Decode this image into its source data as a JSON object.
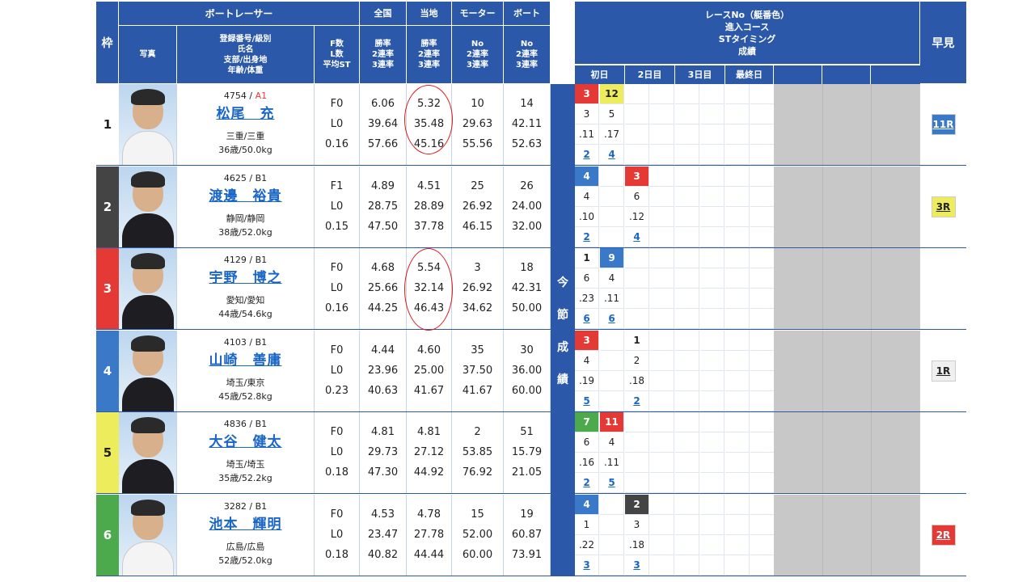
{
  "header": {
    "waku": "枠",
    "boat_racer": "ボートレーサー",
    "photo": "写真",
    "profile": [
      "登録番号/級別",
      "氏名",
      "支部/出身地",
      "年齢/体重"
    ],
    "fst": [
      "F数",
      "L数",
      "平均ST"
    ],
    "national": "全国",
    "local": "当地",
    "motor": "モーター",
    "boat": "ボート",
    "rates_national": [
      "勝率",
      "2連率",
      "3連率"
    ],
    "rates_local": [
      "勝率",
      "2連率",
      "3連率"
    ],
    "rates_motor": [
      "No",
      "2連率",
      "3連率"
    ],
    "rates_boat": [
      "No",
      "2連率",
      "3連率"
    ],
    "results_title": [
      "レースNo（艇番色）",
      "進入コース",
      "STタイミング",
      "成績"
    ],
    "days": [
      "初日",
      "2日目",
      "3日目",
      "最終日"
    ],
    "hayami": "早見",
    "band": [
      "今",
      "節",
      "成",
      "績"
    ]
  },
  "racers": [
    {
      "waku": "1",
      "reg": "4754 / ",
      "cls": "A1",
      "name": "松尾　充",
      "branch": "三重/三重",
      "age": "36歳/50.0kg",
      "fst": [
        "F0",
        "L0",
        "0.16"
      ],
      "national": [
        "6.06",
        "39.64",
        "57.66"
      ],
      "local": [
        "5.32",
        "35.48",
        "45.16"
      ],
      "motor": [
        "10",
        "29.63",
        "55.56"
      ],
      "boat": [
        "14",
        "42.11",
        "52.63"
      ],
      "res": [
        [
          "3",
          "12"
        ],
        [
          "3",
          "5"
        ],
        [
          ".11",
          ".17"
        ],
        [
          "2",
          "4"
        ]
      ],
      "res_col": [
        0,
        1
      ],
      "hayami": "11R"
    },
    {
      "waku": "2",
      "reg": "4625 / B1",
      "cls": "",
      "name": "渡邊　裕貴",
      "branch": "静岡/静岡",
      "age": "38歳/52.0kg",
      "fst": [
        "F1",
        "L0",
        "0.15"
      ],
      "national": [
        "4.89",
        "28.75",
        "47.50"
      ],
      "local": [
        "4.51",
        "28.89",
        "37.78"
      ],
      "motor": [
        "25",
        "26.92",
        "46.15"
      ],
      "boat": [
        "26",
        "24.00",
        "32.00"
      ],
      "res": [
        [
          "4",
          "3"
        ],
        [
          "4",
          "6"
        ],
        [
          ".10",
          ".12"
        ],
        [
          "2",
          "4"
        ]
      ],
      "res_col": [
        0,
        2
      ],
      "hayami": "3R"
    },
    {
      "waku": "3",
      "reg": "4129 / B1",
      "cls": "",
      "name": "宇野　博之",
      "branch": "愛知/愛知",
      "age": "44歳/54.6kg",
      "fst": [
        "F0",
        "L0",
        "0.16"
      ],
      "national": [
        "4.68",
        "25.66",
        "44.25"
      ],
      "local": [
        "5.54",
        "32.14",
        "46.43"
      ],
      "motor": [
        "3",
        "26.92",
        "34.62"
      ],
      "boat": [
        "18",
        "42.31",
        "50.00"
      ],
      "res": [
        [
          "1",
          "9"
        ],
        [
          "6",
          "4"
        ],
        [
          ".23",
          ".11"
        ],
        [
          "6",
          "6"
        ]
      ],
      "res_col": [
        0,
        1
      ],
      "hayami": ""
    },
    {
      "waku": "4",
      "reg": "4103 / B1",
      "cls": "",
      "name": "山崎　善庸",
      "branch": "埼玉/東京",
      "age": "45歳/52.8kg",
      "fst": [
        "F0",
        "L0",
        "0.23"
      ],
      "national": [
        "4.44",
        "23.96",
        "40.63"
      ],
      "local": [
        "4.60",
        "25.00",
        "41.67"
      ],
      "motor": [
        "35",
        "37.50",
        "41.67"
      ],
      "boat": [
        "30",
        "36.00",
        "60.00"
      ],
      "res": [
        [
          "3",
          "1"
        ],
        [
          "4",
          "2"
        ],
        [
          ".19",
          ".18"
        ],
        [
          "5",
          "2"
        ]
      ],
      "res_col": [
        0,
        2
      ],
      "hayami": "1R"
    },
    {
      "waku": "5",
      "reg": "4836 / B1",
      "cls": "",
      "name": "大谷　健太",
      "branch": "埼玉/埼玉",
      "age": "35歳/52.2kg",
      "fst": [
        "F0",
        "L0",
        "0.18"
      ],
      "national": [
        "4.81",
        "29.73",
        "47.30"
      ],
      "local": [
        "4.81",
        "27.12",
        "44.92"
      ],
      "motor": [
        "2",
        "53.85",
        "76.92"
      ],
      "boat": [
        "51",
        "15.79",
        "21.05"
      ],
      "res": [
        [
          "7",
          "11"
        ],
        [
          "6",
          "4"
        ],
        [
          ".16",
          ".11"
        ],
        [
          "2",
          "5"
        ]
      ],
      "res_col": [
        0,
        1
      ],
      "hayami": ""
    },
    {
      "waku": "6",
      "reg": "3282 / B1",
      "cls": "",
      "name": "池本　輝明",
      "branch": "広島/広島",
      "age": "52歳/52.0kg",
      "fst": [
        "F0",
        "L0",
        "0.18"
      ],
      "national": [
        "4.53",
        "23.47",
        "40.82"
      ],
      "local": [
        "4.78",
        "27.78",
        "44.44"
      ],
      "motor": [
        "15",
        "52.00",
        "60.00"
      ],
      "boat": [
        "19",
        "60.87",
        "73.91"
      ],
      "res": [
        [
          "4",
          "2"
        ],
        [
          "1",
          "3"
        ],
        [
          ".22",
          ".18"
        ],
        [
          "3",
          "3"
        ]
      ],
      "res_col": [
        0,
        2
      ],
      "hayami": "2R"
    }
  ],
  "colors": {
    "header_blue": "#2b58a8",
    "waku": [
      "#ffffff",
      "#444444",
      "#e53935",
      "#3a78c8",
      "#ecec5c",
      "#4caa4c"
    ],
    "waku_text": [
      "#222222",
      "#ffffff",
      "#ffffff",
      "#ffffff",
      "#222222",
      "#ffffff"
    ],
    "hayami_bg": [
      "#3a78c8",
      "#ecec5c",
      "",
      "#f0f0f0",
      "",
      "#e53935"
    ],
    "hayami_fg": [
      "#ffffff",
      "#222222",
      "",
      "#222222",
      "",
      "#ffffff"
    ],
    "race_bg": {
      "1": "#ffffff",
      "2": "#444444",
      "3": "#e53935",
      "4": "#3a78c8",
      "5": "#ecec5c",
      "6": "#4caa4c",
      "7": "#4caa4c",
      "9": "#3a78c8",
      "11": "#e53935",
      "12": "#ecec5c"
    },
    "race_fg": {
      "1": "#222222",
      "2": "#ffffff",
      "3": "#ffffff",
      "4": "#ffffff",
      "5": "#222222",
      "6": "#ffffff",
      "7": "#ffffff",
      "9": "#ffffff",
      "11": "#ffffff",
      "12": "#222222"
    }
  }
}
